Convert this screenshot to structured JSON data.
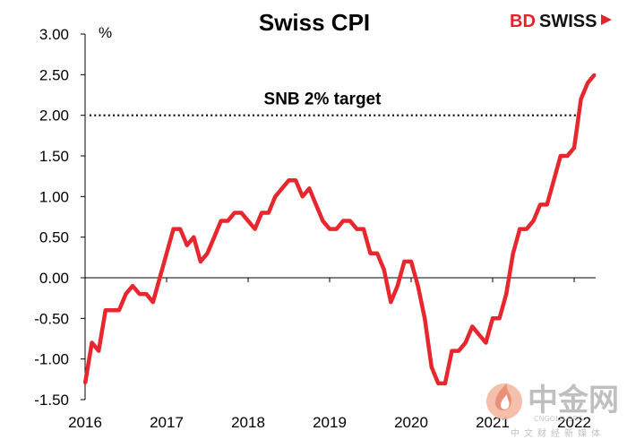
{
  "brand": {
    "bd": "BD",
    "swiss": "SWISS"
  },
  "watermark": {
    "main": "中金网",
    "url": "CNGOLD.ORG",
    "sub": "中文财经新媒体"
  },
  "colors": {
    "line": "#e8262d",
    "brand_red": "#e4232a",
    "axis": "#000000"
  },
  "chart_data": {
    "type": "line",
    "title": "Swiss CPI",
    "ylabel": "%",
    "xlabel": "",
    "ylim": [
      -1.5,
      3.0
    ],
    "yticks": [
      "3.00",
      "2.50",
      "2.00",
      "1.50",
      "1.00",
      "0.50",
      "0.00",
      "-0.50",
      "-1.00",
      "-1.50"
    ],
    "ytick_values": [
      3.0,
      2.5,
      2.0,
      1.5,
      1.0,
      0.5,
      0.0,
      -0.5,
      -1.0,
      -1.5
    ],
    "xticks": [
      "2016",
      "2017",
      "2018",
      "2019",
      "2020",
      "2021",
      "2022"
    ],
    "xtick_values": [
      2016,
      2017,
      2018,
      2019,
      2020,
      2021,
      2022
    ],
    "xlim": [
      2016.0,
      2022.4
    ],
    "grid": false,
    "reference_line": {
      "value": 2.0,
      "label": "SNB 2% target",
      "style": "dotted"
    },
    "series": [
      {
        "name": "Swiss CPI",
        "x": [
          2016.0,
          2016.083,
          2016.167,
          2016.25,
          2016.333,
          2016.417,
          2016.5,
          2016.583,
          2016.667,
          2016.75,
          2016.833,
          2016.917,
          2017.0,
          2017.083,
          2017.167,
          2017.25,
          2017.333,
          2017.417,
          2017.5,
          2017.583,
          2017.667,
          2017.75,
          2017.833,
          2017.917,
          2018.0,
          2018.083,
          2018.167,
          2018.25,
          2018.333,
          2018.417,
          2018.5,
          2018.583,
          2018.667,
          2018.75,
          2018.833,
          2018.917,
          2019.0,
          2019.083,
          2019.167,
          2019.25,
          2019.333,
          2019.417,
          2019.5,
          2019.583,
          2019.667,
          2019.75,
          2019.833,
          2019.917,
          2020.0,
          2020.083,
          2020.167,
          2020.25,
          2020.333,
          2020.417,
          2020.5,
          2020.583,
          2020.667,
          2020.75,
          2020.833,
          2020.917,
          2021.0,
          2021.083,
          2021.167,
          2021.25,
          2021.333,
          2021.417,
          2021.5,
          2021.583,
          2021.667,
          2021.75,
          2021.833,
          2021.917,
          2022.0,
          2022.083,
          2022.167,
          2022.25
        ],
        "values": [
          -1.3,
          -0.8,
          -0.9,
          -0.4,
          -0.4,
          -0.4,
          -0.2,
          -0.1,
          -0.2,
          -0.2,
          -0.3,
          0.0,
          0.3,
          0.6,
          0.6,
          0.4,
          0.5,
          0.2,
          0.3,
          0.5,
          0.7,
          0.7,
          0.8,
          0.8,
          0.7,
          0.6,
          0.8,
          0.8,
          1.0,
          1.1,
          1.2,
          1.2,
          1.0,
          1.1,
          0.9,
          0.7,
          0.6,
          0.6,
          0.7,
          0.7,
          0.6,
          0.6,
          0.3,
          0.3,
          0.1,
          -0.3,
          -0.1,
          0.2,
          0.2,
          -0.1,
          -0.5,
          -1.1,
          -1.3,
          -1.3,
          -0.9,
          -0.9,
          -0.8,
          -0.6,
          -0.7,
          -0.8,
          -0.5,
          -0.5,
          -0.2,
          0.3,
          0.6,
          0.6,
          0.7,
          0.9,
          0.9,
          1.2,
          1.5,
          1.5,
          1.6,
          2.2,
          2.4,
          2.5
        ]
      }
    ]
  }
}
